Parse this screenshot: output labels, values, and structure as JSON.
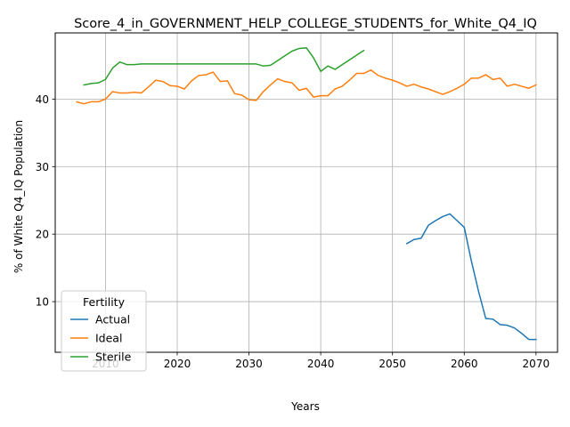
{
  "chart_data": {
    "type": "line",
    "title": "Score_4_in_GOVERNMENT_HELP_COLLEGE_STUDENTS_for_White_Q4_IQ",
    "xlabel": "Years",
    "ylabel": "% of White Q4_IQ Population",
    "xlim": [
      2003,
      2073
    ],
    "ylim": [
      2.5,
      49.8
    ],
    "xticks": [
      2010,
      2020,
      2030,
      2040,
      2050,
      2060,
      2070
    ],
    "yticks": [
      10,
      20,
      30,
      40
    ],
    "grid": true,
    "legend": {
      "title": "Fertility",
      "placement": "lower-left"
    },
    "series": [
      {
        "name": "Actual",
        "color": "#1f77b4",
        "x": [
          2052,
          2053,
          2054,
          2055,
          2056,
          2057,
          2058,
          2059,
          2060,
          2061,
          2062,
          2063,
          2064,
          2065,
          2066,
          2067,
          2068,
          2069,
          2070
        ],
        "y": [
          18.6,
          19.2,
          19.4,
          21.3,
          22.0,
          22.6,
          23.0,
          22.0,
          21.0,
          16.0,
          11.5,
          7.5,
          7.4,
          6.6,
          6.5,
          6.1,
          5.3,
          4.4,
          4.4
        ]
      },
      {
        "name": "Ideal",
        "color": "#ff7f0e",
        "x": [
          2006,
          2007,
          2008,
          2009,
          2010,
          2011,
          2012,
          2013,
          2014,
          2015,
          2016,
          2017,
          2018,
          2019,
          2020,
          2021,
          2022,
          2023,
          2024,
          2025,
          2026,
          2027,
          2028,
          2029,
          2030,
          2031,
          2032,
          2033,
          2034,
          2035,
          2036,
          2037,
          2038,
          2039,
          2040,
          2041,
          2042,
          2043,
          2044,
          2045,
          2046,
          2047,
          2048,
          2049,
          2050,
          2051,
          2052,
          2053,
          2054,
          2055,
          2056,
          2057,
          2058,
          2059,
          2060,
          2061,
          2062,
          2063,
          2064,
          2065,
          2066,
          2067,
          2068,
          2069,
          2070
        ],
        "y": [
          39.6,
          39.3,
          39.6,
          39.6,
          40.0,
          41.1,
          40.9,
          40.9,
          41.0,
          40.9,
          41.8,
          42.8,
          42.6,
          42.0,
          41.9,
          41.5,
          42.7,
          43.5,
          43.6,
          44.0,
          42.6,
          42.7,
          40.8,
          40.6,
          39.9,
          39.8,
          41.1,
          42.1,
          43.0,
          42.6,
          42.4,
          41.3,
          41.6,
          40.3,
          40.5,
          40.5,
          41.5,
          41.9,
          42.8,
          43.8,
          43.8,
          44.3,
          43.5,
          43.1,
          42.8,
          42.4,
          41.9,
          42.2,
          41.8,
          41.5,
          41.1,
          40.7,
          41.1,
          41.6,
          42.2,
          43.1,
          43.1,
          43.6,
          42.9,
          43.1,
          41.9,
          42.2,
          41.9,
          41.6,
          42.1
        ]
      },
      {
        "name": "Sterile",
        "color": "#2ca02c",
        "x": [
          2007,
          2008,
          2009,
          2010,
          2011,
          2012,
          2013,
          2014,
          2015,
          2016,
          2017,
          2018,
          2019,
          2020,
          2021,
          2022,
          2023,
          2024,
          2025,
          2026,
          2027,
          2028,
          2029,
          2030,
          2031,
          2032,
          2033,
          2034,
          2035,
          2036,
          2037,
          2038,
          2039,
          2040,
          2041,
          2042,
          2043,
          2044,
          2045,
          2046
        ],
        "y": [
          42.1,
          42.3,
          42.4,
          42.9,
          44.6,
          45.5,
          45.1,
          45.1,
          45.2,
          45.2,
          45.2,
          45.2,
          45.2,
          45.2,
          45.2,
          45.2,
          45.2,
          45.2,
          45.2,
          45.2,
          45.2,
          45.2,
          45.2,
          45.2,
          45.2,
          44.9,
          45.0,
          45.7,
          46.4,
          47.1,
          47.5,
          47.6,
          46.1,
          44.1,
          44.9,
          44.4,
          45.1,
          45.8,
          46.5,
          47.2
        ]
      }
    ]
  }
}
